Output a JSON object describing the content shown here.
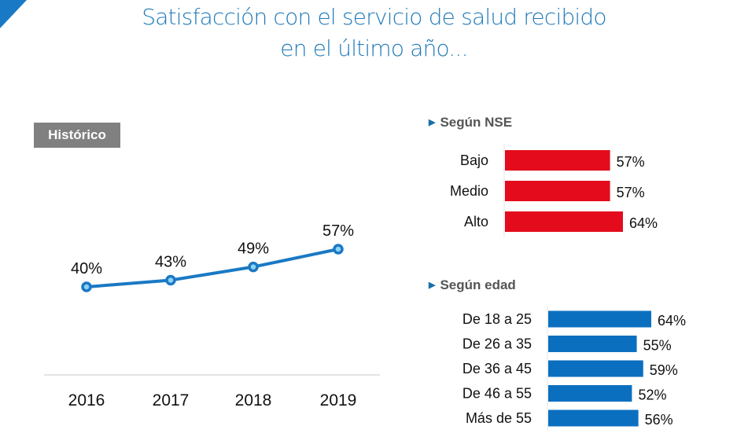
{
  "title": {
    "line1": "Satisfacción con el servicio de salud recibido",
    "line2": "en el último año..."
  },
  "colors": {
    "title": "#1f7ab8",
    "line": "#1a79c4",
    "nse_bar": "#e30b1c",
    "age_bar": "#0b6fc0",
    "badge": "#808080"
  },
  "chart_data": [
    {
      "type": "line",
      "title": "Histórico",
      "x": [
        "2016",
        "2017",
        "2018",
        "2019"
      ],
      "values": [
        40,
        43,
        49,
        57
      ],
      "data_labels": [
        "40%",
        "43%",
        "49%",
        "57%"
      ],
      "unit": "%",
      "grid": false
    },
    {
      "type": "bar",
      "orientation": "horizontal",
      "title": "Según NSE",
      "categories": [
        "Bajo",
        "Medio",
        "Alto"
      ],
      "values": [
        57,
        57,
        64
      ],
      "data_labels": [
        "57%",
        "57%",
        "64%"
      ],
      "unit": "%"
    },
    {
      "type": "bar",
      "orientation": "horizontal",
      "title": "Según edad",
      "categories": [
        "De 18 a 25",
        "De 26 a 35",
        "De 36 a 45",
        "De 46 a 55",
        "Más de 55"
      ],
      "values": [
        64,
        55,
        59,
        52,
        56
      ],
      "data_labels": [
        "64%",
        "55%",
        "59%",
        "52%",
        "56%"
      ],
      "unit": "%"
    }
  ]
}
